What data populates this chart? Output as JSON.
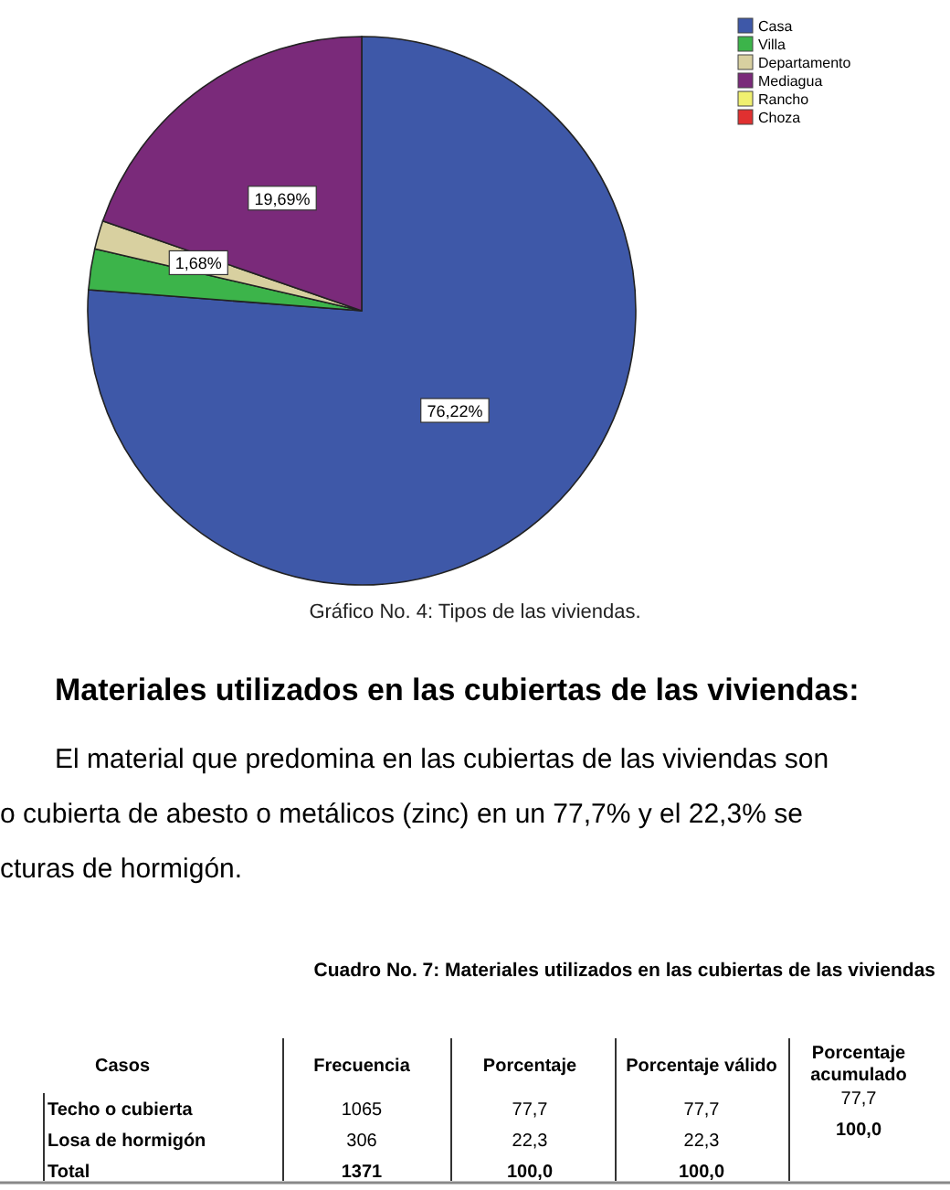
{
  "chart_data": [
    {
      "type": "pie",
      "title": "Gráfico No. 4: Tipos de las viviendas.",
      "categories": [
        "Casa",
        "Villa",
        "Departamento",
        "Mediagua",
        "Rancho",
        "Choza"
      ],
      "values": [
        76.22,
        2.41,
        1.68,
        19.69,
        0,
        0
      ],
      "colors": [
        "#3e58a8",
        "#3cb44a",
        "#d8d0a0",
        "#7a2a7a",
        "#f0f070",
        "#e03030"
      ],
      "value_labels": [
        "76,22%",
        null,
        "1,68%",
        "19,69%",
        null,
        null
      ],
      "legend": "top right"
    },
    {
      "type": "other",
      "title": "Materiales utilizados en las cubiertas de las viviendas:",
      "annotations": [
        "El material que predomina en las cubiertas de las viviendas son",
        "o cubierta de abesto o metálicos (zinc) en un 77,7% y el 22,3% se",
        "cturas de hormigón.",
        "Cuadro No. 7: Materiales utilizados en las cubiertas de las viviendas"
      ],
      "xlabel": "Casos",
      "categories": [
        "Frecuencia",
        "Porcentaje",
        "Porcentaje válido",
        "Porcentaje acumulado"
      ],
      "y_categories": [
        "Techo o cubierta",
        "Losa de hormigón",
        "Total"
      ],
      "cell_labels": [
        [
          "1065",
          "77,7",
          "77,7",
          "77,7"
        ],
        [
          "306",
          "22,3",
          "22,3",
          "100,0"
        ],
        [
          "1371",
          "100,0",
          "100,0",
          null
        ]
      ]
    }
  ]
}
